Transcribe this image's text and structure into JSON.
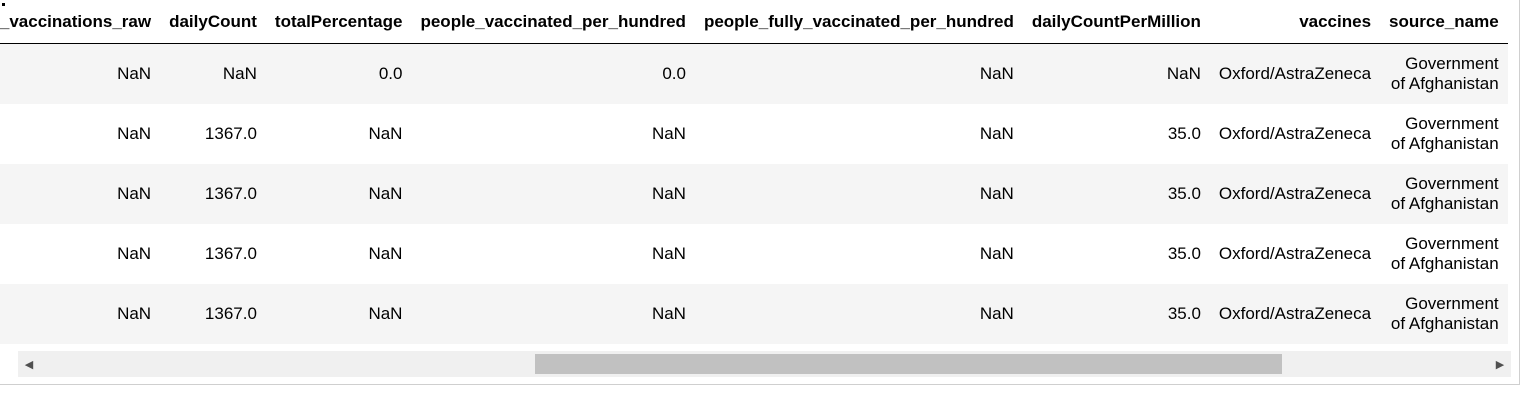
{
  "table": {
    "columns": [
      "total_vaccinations_raw",
      "dailyCount",
      "totalPercentage",
      "people_vaccinated_per_hundred",
      "people_fully_vaccinated_per_hundred",
      "dailyCountPerMillion",
      "vaccines",
      "source_name"
    ],
    "rows": [
      [
        "NaN",
        "NaN",
        "0.0",
        "0.0",
        "NaN",
        "NaN",
        "Oxford/AstraZeneca",
        "Government of Afghanistan"
      ],
      [
        "NaN",
        "1367.0",
        "NaN",
        "NaN",
        "NaN",
        "35.0",
        "Oxford/AstraZeneca",
        "Government of Afghanistan"
      ],
      [
        "NaN",
        "1367.0",
        "NaN",
        "NaN",
        "NaN",
        "35.0",
        "Oxford/AstraZeneca",
        "Government of Afghanistan"
      ],
      [
        "NaN",
        "1367.0",
        "NaN",
        "NaN",
        "NaN",
        "35.0",
        "Oxford/AstraZeneca",
        "Government of Afghanistan"
      ],
      [
        "NaN",
        "1367.0",
        "NaN",
        "NaN",
        "NaN",
        "35.0",
        "Oxford/AstraZeneca",
        "Government of Afghanistan"
      ]
    ]
  },
  "scrollbar": {
    "left_icon": "arrow-left-icon",
    "right_icon": "arrow-right-icon",
    "left_glyph": "◀",
    "right_glyph": "▶",
    "thumb_start_fraction": 0.35,
    "thumb_length_fraction": 0.5
  }
}
